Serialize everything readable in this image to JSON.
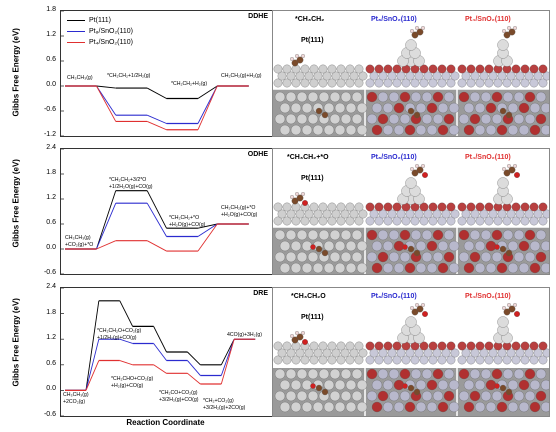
{
  "colors": {
    "pt": "#000000",
    "pt8": "#2b2bcf",
    "pt4": "#e03030"
  },
  "legend": [
    {
      "label": "Pt(111)",
      "color": "#000000"
    },
    {
      "label": "Pt₈/SnO₂(110)",
      "color": "#2b2bcf"
    },
    {
      "label": "Pt₄/SnO₂(110)",
      "color": "#e03030"
    }
  ],
  "xlabel": "Reaction Coordinate",
  "chart_data": [
    {
      "type": "line",
      "title": "DDHE",
      "ylabel": "Gibbs Free Energy (eV)",
      "ylim": [
        -1.2,
        1.8
      ],
      "yticks": [
        "1.8",
        "1.2",
        "0.6",
        "0.0",
        "-0.6",
        "-1.2"
      ],
      "states": [
        "CH3CH3(g)",
        "*CH2CH2+1/2H2(g)",
        "*CH2CH2+H2(g)",
        "CH2CH2(g)+H2(g)"
      ],
      "annotations": [
        "CH₃CH₃(g)",
        "*CH₂CH₂+1/2H₂(g)",
        "*CH₂CH₂+H₂(g)",
        "CH₂CH₂(g)+H₂(g)"
      ],
      "series": [
        {
          "name": "Pt(111)",
          "values": [
            0.0,
            -0.05,
            -0.3,
            0.0
          ]
        },
        {
          "name": "Pt₈/SnO₂(110)",
          "values": [
            0.0,
            -0.7,
            -0.9,
            0.0
          ]
        },
        {
          "name": "Pt₄/SnO₂(110)",
          "values": [
            0.0,
            -0.85,
            -1.05,
            0.0
          ]
        }
      ]
    },
    {
      "type": "line",
      "title": "ODHE",
      "ylabel": "Gibbs Free Energy (eV)",
      "ylim": [
        -0.6,
        2.4
      ],
      "yticks": [
        "2.4",
        "1.8",
        "1.2",
        "0.6",
        "0.0",
        "-0.6"
      ],
      "states": [
        "CH3CH3(g)+CO2(g)+*O",
        "*CH2CH2+3/2*O+1/2H2O(g)+CO(g)",
        "*CH2CH2+*O+H2O(g)+CO(g)",
        "CH2CH2(g)+*O+H2O(g)+CO(g)"
      ],
      "annotations": [
        "CH₃CH₃(g)\n+CO₂(g)+*O",
        "*CH₂CH₂+3/2*O\n+1/2H₂O(g)+CO(g)",
        "*CH₂CH₂+*O\n+H₂O(g)+CO(g)",
        "CH₂CH₂(g)+*O\n+H₂O(g)+CO(g)"
      ],
      "series": [
        {
          "name": "Pt(111)",
          "values": [
            0.0,
            1.4,
            0.5,
            0.6
          ]
        },
        {
          "name": "Pt₈/SnO₂(110)",
          "values": [
            0.0,
            1.1,
            0.3,
            0.6
          ]
        },
        {
          "name": "Pt₄/SnO₂(110)",
          "values": [
            0.0,
            0.2,
            -0.05,
            0.6
          ]
        }
      ]
    },
    {
      "type": "line",
      "title": "DRE",
      "ylabel": "Gibbs Free Energy (eV)",
      "ylim": [
        -0.6,
        2.4
      ],
      "yticks": [
        "2.4",
        "1.8",
        "1.2",
        "0.6",
        "0.0",
        "-0.6"
      ],
      "states": [
        "CH3CH3(g)+2CO2(g)",
        "*CH2CH2O+CO2(g)+1/2H2(g)+CO(g)",
        "*CH2CHO+CO2(g)+H2(g)+CO(g)",
        "*CH2CO+CO2(g)+3/2H2(g)+CO(g)",
        "*CH2+CO2(g)+3/2H2(g)+2CO(g)",
        "4CO(g)+3H2(g)"
      ],
      "annotations": [
        "CH₃CH₃(g)\n+2CO₂(g)",
        "*CH₂CH₂O+CO₂(g)\n+1/2H₂(g)+CO(g)",
        "*CH₂CHO+CO₂(g)\n+H₂(g)+CO(g)",
        "*CH₂CO+CO₂(g)\n+3/2H₂(g)+CO(g)",
        "*CH₂+CO₂(g)\n+3/2H₂(g)+2CO(g)",
        "4CO(g)+3H₂(g)"
      ],
      "series": [
        {
          "name": "Pt(111)",
          "values": [
            0.0,
            2.1,
            1.5,
            0.9,
            0.6,
            1.2
          ]
        },
        {
          "name": "Pt₈/SnO₂(110)",
          "values": [
            0.0,
            1.2,
            1.1,
            0.7,
            0.35,
            1.2
          ]
        },
        {
          "name": "Pt₄/SnO₂(110)",
          "values": [
            0.0,
            0.7,
            0.6,
            0.4,
            0.15,
            1.2
          ]
        }
      ]
    }
  ],
  "structures": [
    {
      "adsorbate": "*CH₃CH₂",
      "labels": [
        "Pt₈/SnO₂(110)",
        "Pt₄/SnO₂(110)"
      ],
      "pt_label": "Pt(111)"
    },
    {
      "adsorbate": "*CH₃CH₂+*O",
      "labels": [
        "Pt₈/SnO₂(110)",
        "Pt₄/SnO₂(110)"
      ],
      "pt_label": "Pt(111)"
    },
    {
      "adsorbate": "*CH₃CH₂O",
      "labels": [
        "Pt₈/SnO₂(110)",
        "Pt₄/SnO₂(110)"
      ],
      "pt_label": "Pt(111)"
    }
  ]
}
